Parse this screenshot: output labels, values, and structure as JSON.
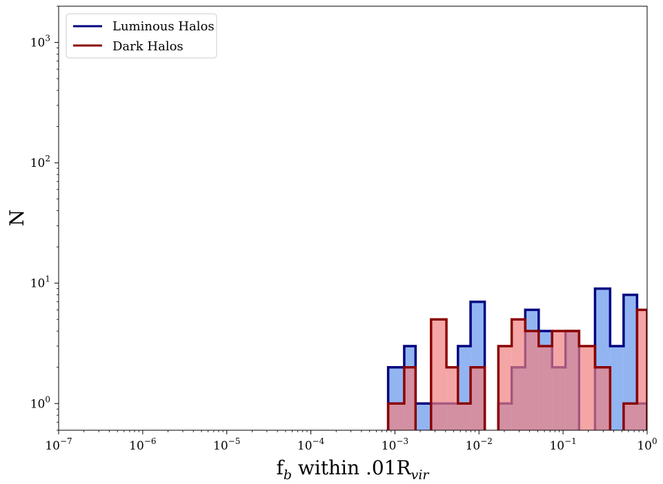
{
  "chart_data": {
    "type": "histogram",
    "xscale": "log",
    "yscale": "log",
    "xlim": [
      1e-07,
      1
    ],
    "ylim": [
      0.6,
      2000
    ],
    "xlabel": {
      "base": "f",
      "sub": "b",
      "mid": " within .01R",
      "sub2": "vir"
    },
    "ylabel": "N",
    "x_ticks": [
      {
        "value": 1e-07,
        "base": "10",
        "exp": "−7"
      },
      {
        "value": 1e-06,
        "base": "10",
        "exp": "−6"
      },
      {
        "value": 1e-05,
        "base": "10",
        "exp": "−5"
      },
      {
        "value": 0.0001,
        "base": "10",
        "exp": "−4"
      },
      {
        "value": 0.001,
        "base": "10",
        "exp": "−3"
      },
      {
        "value": 0.01,
        "base": "10",
        "exp": "−2"
      },
      {
        "value": 0.1,
        "base": "10",
        "exp": "−1"
      },
      {
        "value": 1,
        "base": "10",
        "exp": "0"
      }
    ],
    "y_ticks": [
      {
        "value": 1,
        "base": "10",
        "exp": "0"
      },
      {
        "value": 10,
        "base": "10",
        "exp": "1"
      },
      {
        "value": 100,
        "base": "10",
        "exp": "2"
      },
      {
        "value": 1000,
        "base": "10",
        "exp": "3"
      }
    ],
    "bin_edges": [
      0.000831,
      0.00129,
      0.00176,
      0.00269,
      0.0041,
      0.00562,
      0.00794,
      0.0117,
      0.017,
      0.0245,
      0.0355,
      0.0513,
      0.0741,
      0.107,
      0.155,
      0.24,
      0.363,
      0.525,
      0.759,
      1.0
    ],
    "series": [
      {
        "name": "Luminous Halos",
        "line_color": "#00007f",
        "fill_color": "#6495ed",
        "fill_opacity": 0.7,
        "counts": [
          2,
          3,
          1,
          1,
          1,
          3,
          7,
          0,
          1,
          2,
          6,
          4,
          2,
          4,
          0,
          9,
          3,
          8,
          1
        ]
      },
      {
        "name": "Dark Halos",
        "line_color": "#8b0000",
        "fill_color": "#f08080",
        "fill_opacity": 0.7,
        "counts": [
          1,
          2,
          0,
          5,
          2,
          1,
          2,
          0,
          3,
          5,
          4,
          3,
          4,
          4,
          3,
          2,
          0,
          1,
          6
        ]
      }
    ],
    "legend_position": "top-left"
  }
}
